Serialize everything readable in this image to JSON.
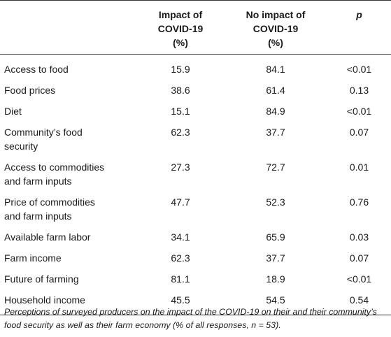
{
  "table": {
    "headers": {
      "label": "",
      "impact": [
        "Impact of",
        "COVID-19",
        "(%)"
      ],
      "no_impact": [
        "No impact of",
        "COVID-19",
        "(%)"
      ],
      "p": "p"
    },
    "rows": [
      {
        "label": [
          "Access to food"
        ],
        "impact": "15.9",
        "no_impact": "84.1",
        "p": "<0.01"
      },
      {
        "label": [
          "Food prices"
        ],
        "impact": "38.6",
        "no_impact": "61.4",
        "p": "0.13"
      },
      {
        "label": [
          "Diet"
        ],
        "impact": "15.1",
        "no_impact": "84.9",
        "p": "<0.01"
      },
      {
        "label": [
          "Community’s food",
          "security"
        ],
        "impact": "62.3",
        "no_impact": "37.7",
        "p": "0.07"
      },
      {
        "label": [
          "Access to commodities",
          "and farm inputs"
        ],
        "impact": "27.3",
        "no_impact": "72.7",
        "p": "0.01"
      },
      {
        "label": [
          "Price of commodities",
          "and farm inputs"
        ],
        "impact": "47.7",
        "no_impact": "52.3",
        "p": "0.76"
      },
      {
        "label": [
          "Available farm labor"
        ],
        "impact": "34.1",
        "no_impact": "65.9",
        "p": "0.03"
      },
      {
        "label": [
          "Farm income"
        ],
        "impact": "62.3",
        "no_impact": "37.7",
        "p": "0.07"
      },
      {
        "label": [
          "Future of farming"
        ],
        "impact": "81.1",
        "no_impact": "18.9",
        "p": "<0.01"
      },
      {
        "label": [
          "Household income"
        ],
        "impact": "45.5",
        "no_impact": "54.5",
        "p": "0.54"
      }
    ]
  },
  "caption": "Perceptions of surveyed producers on the impact of the COVID-19 on their and their community’s food security as well as their farm economy (% of all responses, n = 53)."
}
